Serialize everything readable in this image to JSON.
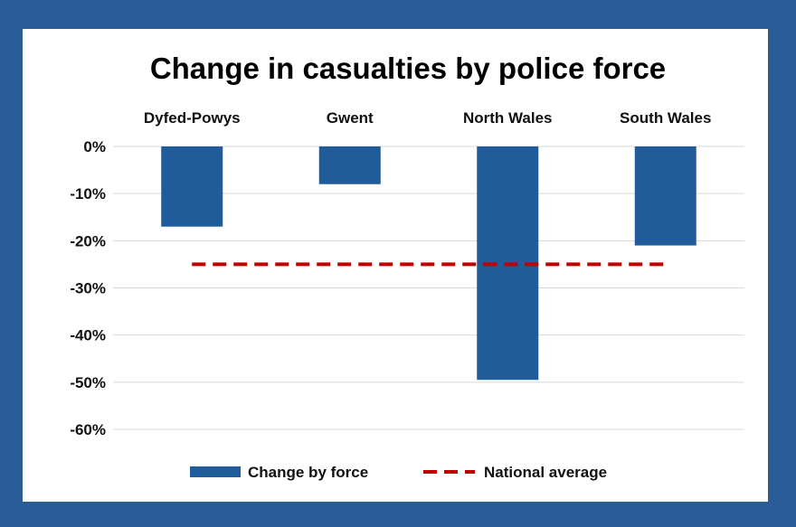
{
  "colors": {
    "frame": "#2a5c98",
    "bar": "#1f5c99",
    "average_line": "#c00000",
    "grid": "#d9d9d9"
  },
  "chart_data": {
    "type": "bar",
    "title": "Change in casualties by police force",
    "categories": [
      "Dyfed-Powys",
      "Gwent",
      "North Wales",
      "South Wales"
    ],
    "series": [
      {
        "name": "Change by force",
        "kind": "bar",
        "values": [
          -17,
          -8,
          -49.5,
          -21
        ]
      },
      {
        "name": "National average",
        "kind": "dashed-line",
        "values": [
          -25,
          -25,
          -25,
          -25
        ]
      }
    ],
    "yticks": [
      "0%",
      "-10%",
      "-20%",
      "-30%",
      "-40%",
      "-50%",
      "-60%"
    ],
    "ylim": [
      -60,
      0
    ],
    "category_labels_position": "top",
    "grid": true,
    "legend": "bottom"
  }
}
